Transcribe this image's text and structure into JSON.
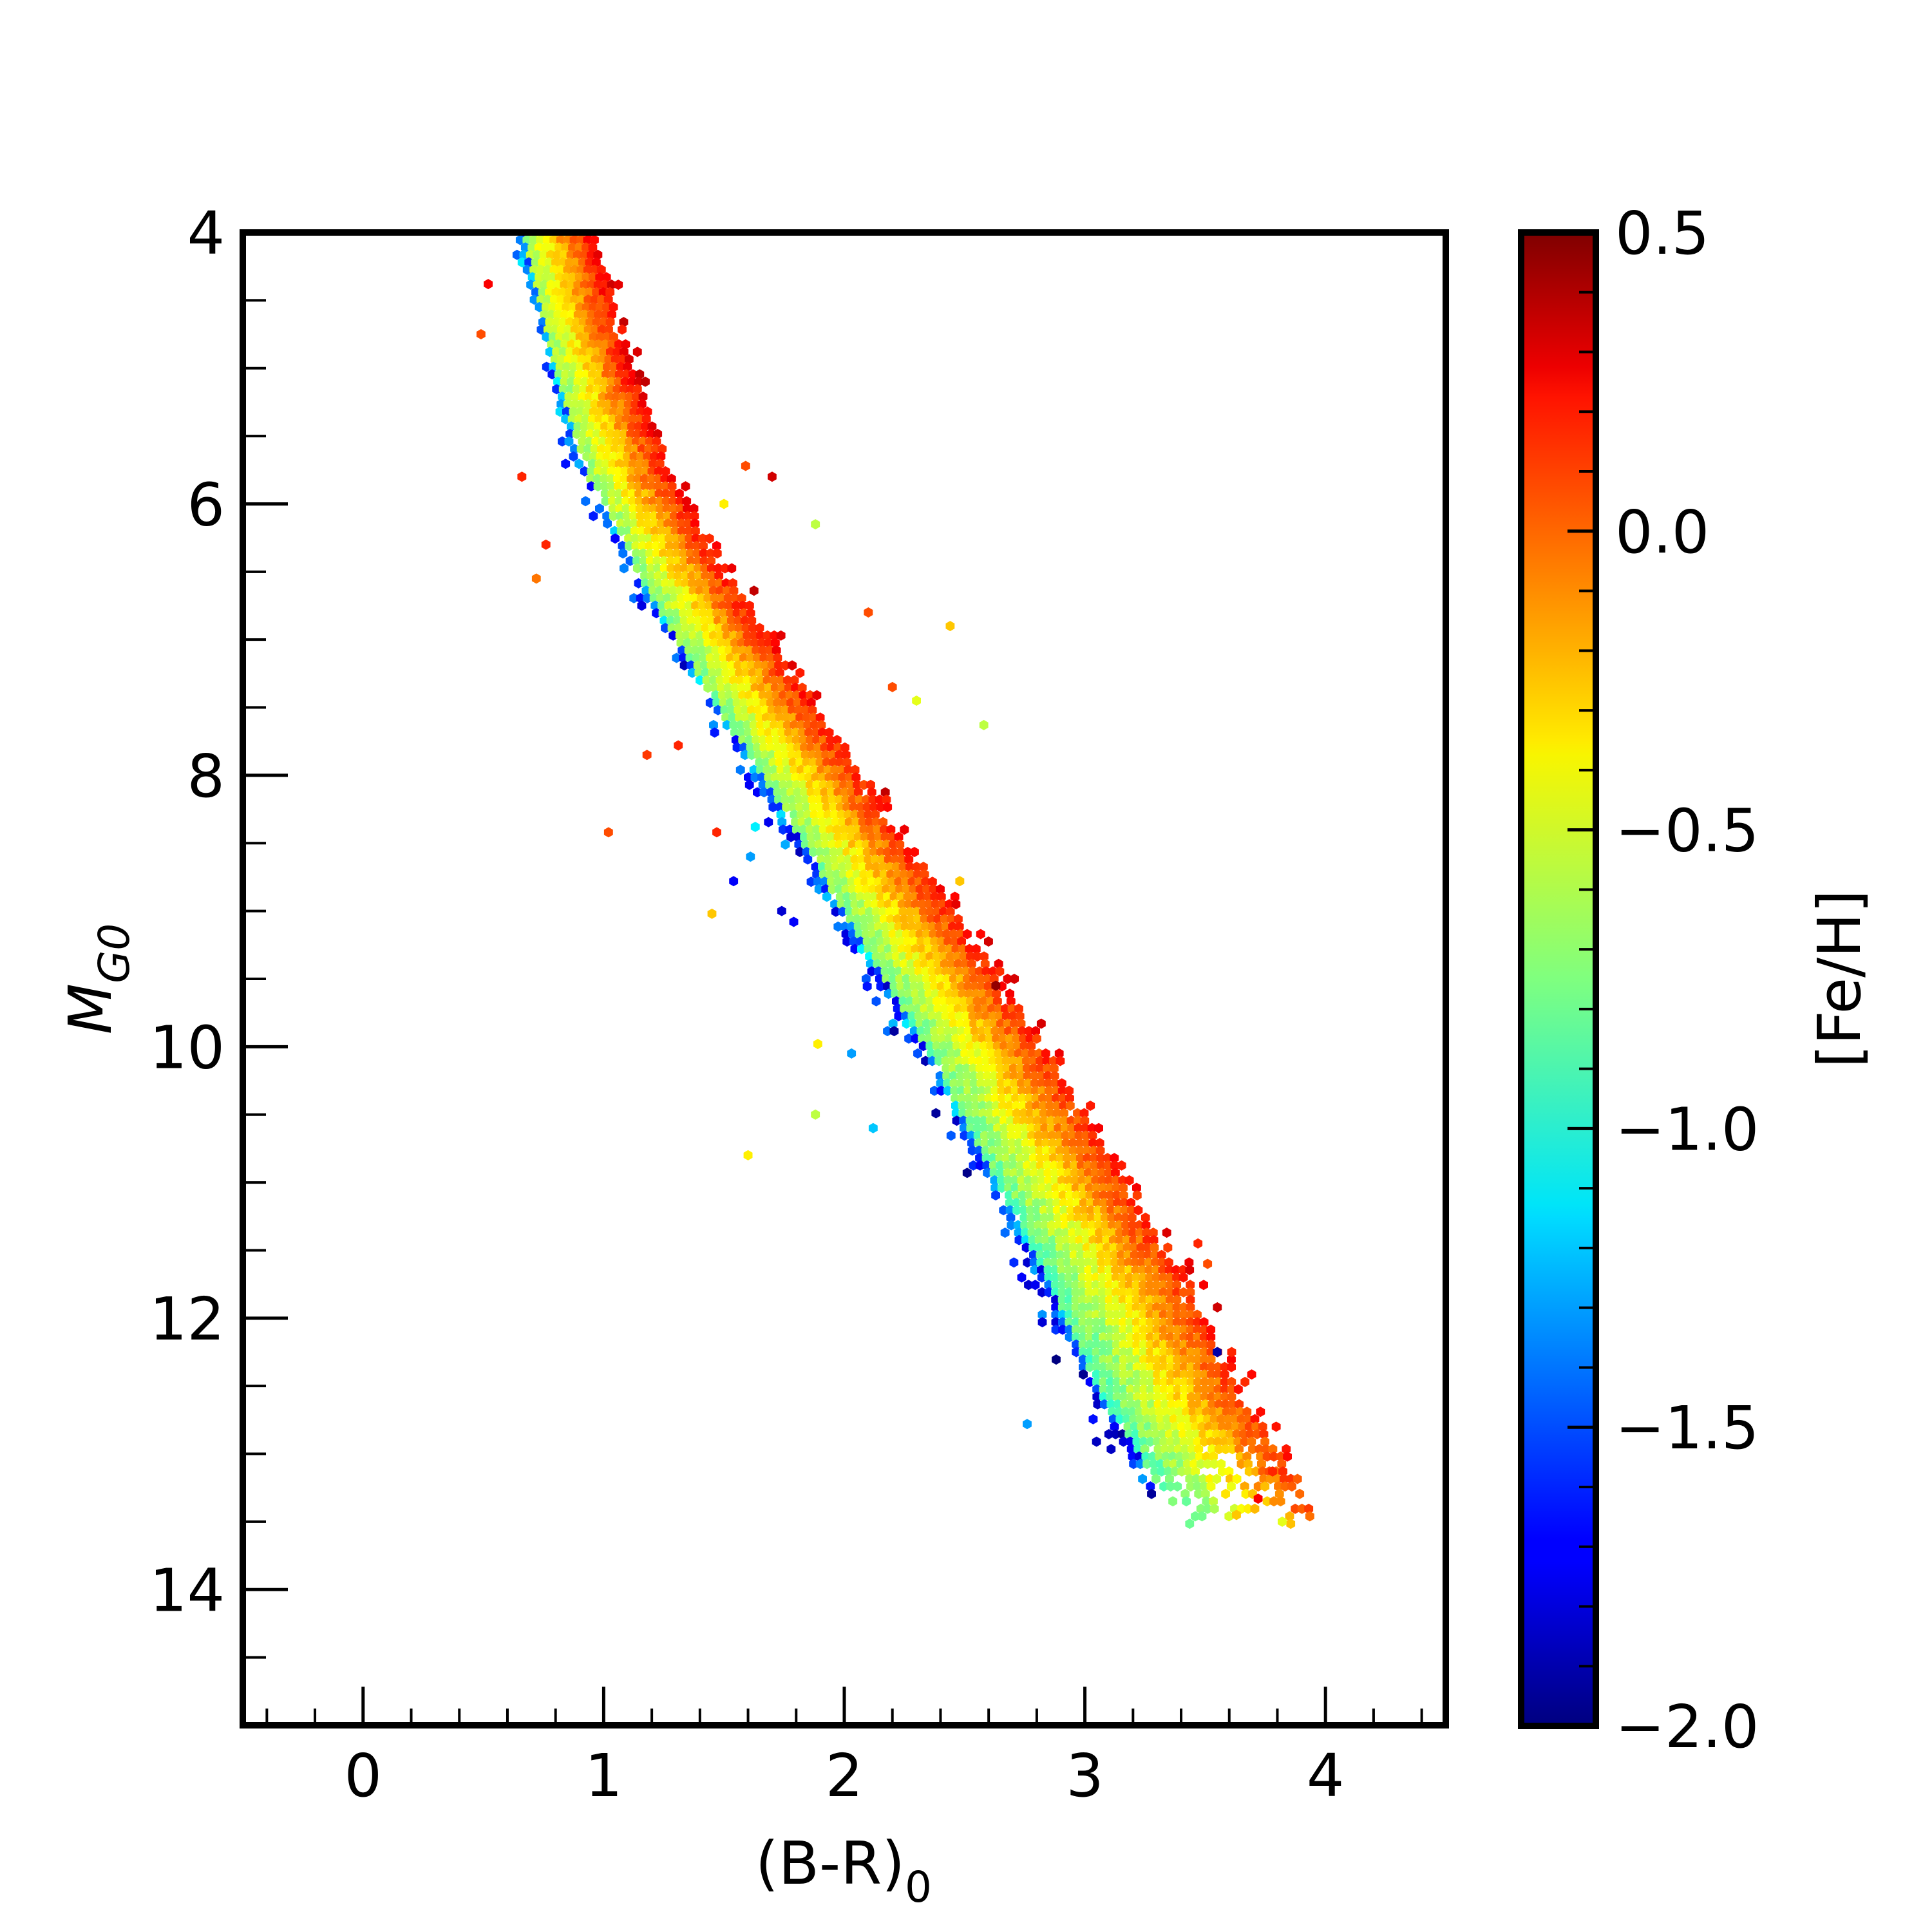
{
  "chart_data": {
    "type": "scatter",
    "title": "",
    "xlabel": {
      "main": "(B-R)",
      "sub": "0"
    },
    "ylabel": {
      "main": "M",
      "sub": "G0"
    },
    "xlim": [
      -0.5,
      4.5
    ],
    "ylim": [
      4,
      15
    ],
    "y_inverted": true,
    "grid": false,
    "x_ticks": [
      0,
      1,
      2,
      3,
      4
    ],
    "x_tick_labels": [
      "0",
      "1",
      "2",
      "3",
      "4"
    ],
    "x_minor_step": 0.2,
    "y_ticks": [
      4,
      6,
      8,
      10,
      12,
      14
    ],
    "y_tick_labels": [
      "4",
      "6",
      "8",
      "10",
      "12",
      "14"
    ],
    "y_minor_step": 0.5,
    "marker": "hexagon",
    "colorbar": {
      "label": "[Fe/H]",
      "colormap": "jet",
      "range": [
        -2.0,
        0.5
      ],
      "ticks": [
        0.5,
        0.0,
        -0.5,
        -1.0,
        -1.5,
        -2.0
      ],
      "tick_labels": [
        "0.5",
        "0.0",
        "−0.5",
        "−1.0",
        "−1.5",
        "−2.0"
      ],
      "minor_step": 0.1
    },
    "main_sequence_ridge": [
      {
        "x": 0.8,
        "y": 4.0
      },
      {
        "x": 0.95,
        "y": 5.0
      },
      {
        "x": 1.1,
        "y": 5.8
      },
      {
        "x": 1.35,
        "y": 6.6
      },
      {
        "x": 1.6,
        "y": 7.3
      },
      {
        "x": 1.85,
        "y": 8.0
      },
      {
        "x": 2.1,
        "y": 8.7
      },
      {
        "x": 2.35,
        "y": 9.4
      },
      {
        "x": 2.6,
        "y": 10.1
      },
      {
        "x": 2.85,
        "y": 10.9
      },
      {
        "x": 3.1,
        "y": 11.7
      },
      {
        "x": 3.35,
        "y": 12.6
      },
      {
        "x": 3.6,
        "y": 13.3
      }
    ],
    "outliers": [
      {
        "x": 0.49,
        "y": 4.75,
        "feh": 0.0
      },
      {
        "x": 0.52,
        "y": 4.38,
        "feh": 0.2
      },
      {
        "x": 0.66,
        "y": 5.8,
        "feh": 0.1
      },
      {
        "x": 0.72,
        "y": 6.55,
        "feh": -0.1
      },
      {
        "x": 0.76,
        "y": 6.3,
        "feh": 0.1
      },
      {
        "x": 1.02,
        "y": 8.42,
        "feh": 0.0
      },
      {
        "x": 1.18,
        "y": 7.85,
        "feh": 0.05
      },
      {
        "x": 1.31,
        "y": 7.78,
        "feh": 0.1
      },
      {
        "x": 1.47,
        "y": 8.42,
        "feh": 0.1
      },
      {
        "x": 1.45,
        "y": 9.02,
        "feh": -0.3
      },
      {
        "x": 1.54,
        "y": 8.78,
        "feh": -1.7
      },
      {
        "x": 1.61,
        "y": 8.6,
        "feh": -1.3
      },
      {
        "x": 1.63,
        "y": 8.38,
        "feh": -1.1
      },
      {
        "x": 1.74,
        "y": 9.0,
        "feh": -1.8
      },
      {
        "x": 1.79,
        "y": 9.08,
        "feh": -1.7
      },
      {
        "x": 1.88,
        "y": 10.5,
        "feh": -0.6
      },
      {
        "x": 1.6,
        "y": 10.8,
        "feh": -0.4
      },
      {
        "x": 1.89,
        "y": 9.98,
        "feh": -0.4
      },
      {
        "x": 2.03,
        "y": 10.05,
        "feh": -1.3
      },
      {
        "x": 2.12,
        "y": 10.6,
        "feh": -1.2
      },
      {
        "x": 2.44,
        "y": 6.9,
        "feh": -0.3
      },
      {
        "x": 2.58,
        "y": 7.63,
        "feh": -0.6
      },
      {
        "x": 2.48,
        "y": 8.78,
        "feh": -0.3
      },
      {
        "x": 1.88,
        "y": 6.15,
        "feh": -0.6
      },
      {
        "x": 1.7,
        "y": 5.8,
        "feh": 0.3
      },
      {
        "x": 1.59,
        "y": 5.72,
        "feh": 0.0
      },
      {
        "x": 1.5,
        "y": 6.0,
        "feh": -0.4
      },
      {
        "x": 2.76,
        "y": 12.78,
        "feh": -1.3
      },
      {
        "x": 3.55,
        "y": 12.25,
        "feh": -1.9
      },
      {
        "x": 3.61,
        "y": 12.25,
        "feh": 0.1
      },
      {
        "x": 3.47,
        "y": 11.45,
        "feh": 0.1
      },
      {
        "x": 3.51,
        "y": 11.6,
        "feh": 0.0
      },
      {
        "x": 3.72,
        "y": 13.33,
        "feh": 0.2
      },
      {
        "x": 3.78,
        "y": 13.13,
        "feh": 0.1
      },
      {
        "x": 3.82,
        "y": 13.5,
        "feh": -0.5
      },
      {
        "x": 3.63,
        "y": 13.45,
        "feh": -0.3
      },
      {
        "x": 2.63,
        "y": 9.55,
        "feh": 0.45
      },
      {
        "x": 2.2,
        "y": 7.35,
        "feh": 0.0
      },
      {
        "x": 2.3,
        "y": 7.45,
        "feh": -0.5
      },
      {
        "x": 2.1,
        "y": 6.8,
        "feh": 0.0
      }
    ]
  }
}
